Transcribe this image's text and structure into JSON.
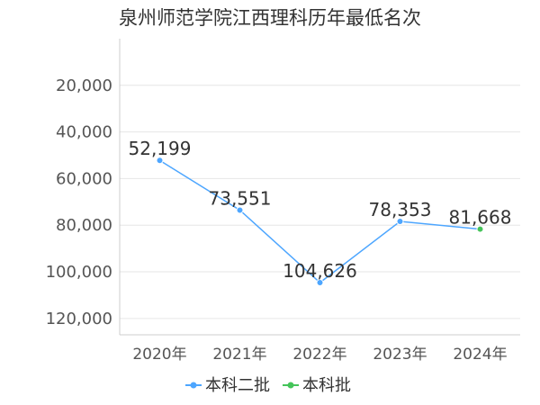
{
  "chart_data": {
    "type": "line",
    "title": "泉州师范学院江西理科历年最低名次",
    "xlabel": "",
    "ylabel": "",
    "categories": [
      "2020年",
      "2021年",
      "2022年",
      "2023年",
      "2024年"
    ],
    "y_ticks": [
      "20,000",
      "40,000",
      "60,000",
      "80,000",
      "100,000",
      "120,000"
    ],
    "y_tick_values": [
      20000,
      40000,
      60000,
      80000,
      100000,
      120000
    ],
    "ylim": [
      0,
      127000
    ],
    "y_inverted": true,
    "grid": true,
    "legend_position": "bottom",
    "series": [
      {
        "name": "本科二批",
        "color": "#4da6ff",
        "values": [
          52199,
          73551,
          104626,
          78353,
          null
        ],
        "labels": [
          "52,199",
          "73,551",
          "104,626",
          "78,353",
          ""
        ]
      },
      {
        "name": "本科批",
        "color": "#45c45a",
        "values": [
          null,
          null,
          null,
          null,
          81668
        ],
        "labels": [
          "",
          "",
          "",
          "",
          "81,668"
        ]
      }
    ],
    "connector_color": "#4da6ff"
  }
}
